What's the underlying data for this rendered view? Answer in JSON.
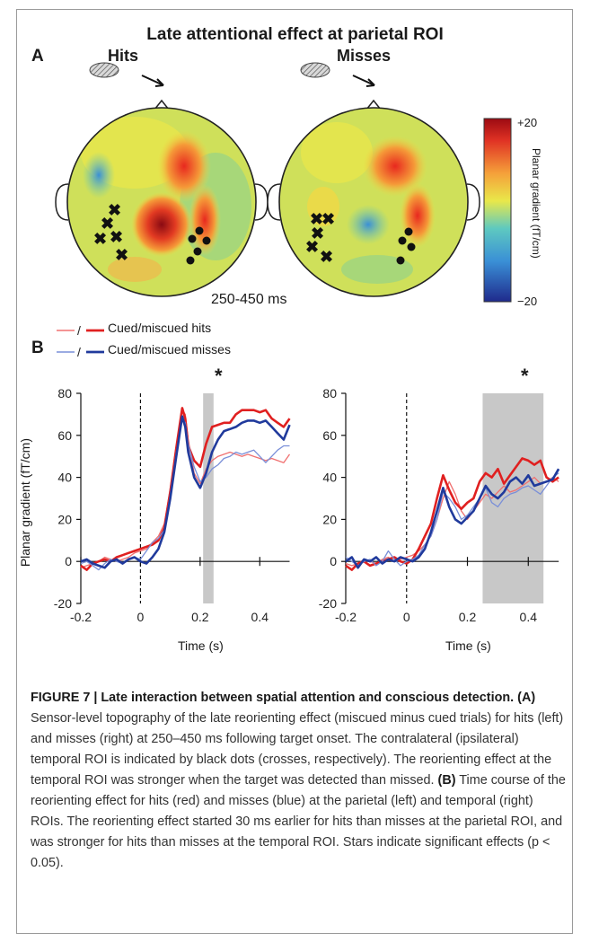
{
  "figure": {
    "title": "Late attentional effect at parietal ROI",
    "panel_a_label": "A",
    "panel_b_label": "B",
    "hits_label": "Hits",
    "misses_label": "Misses",
    "time_window": "250-450 ms",
    "colorbar": {
      "max": "+20",
      "min": "−20",
      "label": "Planar gradient (fT/cm)"
    },
    "legend": [
      {
        "label": "Cued/miscued hits",
        "separator": "/",
        "colors": [
          "#f07070",
          "#e02020"
        ]
      },
      {
        "label": "Cued/miscued misses",
        "separator": "/",
        "colors": [
          "#7a8fd8",
          "#203a9c"
        ]
      }
    ],
    "significance_marker": "*",
    "ylabel": "Planar gradient (fT/cm)",
    "xlabel": "Time (s)"
  },
  "caption": {
    "title": "FIGURE 7 | Late interaction between spatial attention and conscious detection.",
    "a_marker": "(A)",
    "a_text": " Sensor-level topography of the late reorienting effect (miscued minus cued trials) for hits (left) and misses (right) at 250–450 ms following target onset. The contralateral (ipsilateral) temporal ROI is indicated by black dots (crosses, respectively). The reorienting effect at the temporal ROI was stronger when the target was detected than missed. ",
    "b_marker": "(B)",
    "b_text": " Time course of the reorienting effect for hits (red) and misses (blue) at the parietal (left) and temporal (right) ROIs. The reorienting effect started 30 ms earlier for hits than misses at the parietal ROI, and was stronger for hits than misses at the temporal ROI. Stars indicate significant effects (p < 0.05)."
  },
  "chart_data": [
    {
      "type": "line",
      "title": "",
      "xlabel": "Time (s)",
      "ylabel": "Planar gradient (fT/cm)",
      "xlim": [
        -0.2,
        0.5
      ],
      "ylim": [
        -20,
        80
      ],
      "x_ticks": [
        "-0.2",
        "0",
        "0.2",
        "0.4"
      ],
      "y_ticks": [
        "-20",
        "0",
        "20",
        "40",
        "60",
        "80"
      ],
      "significant_window": [
        0.21,
        0.245
      ],
      "significance_marker_x": 0.225,
      "onset_line_x": 0,
      "x": [
        -0.2,
        -0.18,
        -0.16,
        -0.14,
        -0.12,
        -0.1,
        -0.08,
        -0.06,
        -0.04,
        -0.02,
        0.0,
        0.02,
        0.04,
        0.06,
        0.08,
        0.1,
        0.12,
        0.14,
        0.15,
        0.16,
        0.18,
        0.2,
        0.22,
        0.24,
        0.26,
        0.28,
        0.3,
        0.32,
        0.34,
        0.36,
        0.38,
        0.4,
        0.42,
        0.44,
        0.46,
        0.48,
        0.5
      ],
      "series": [
        {
          "name": "Cued/miscued hits",
          "color": "#f07070",
          "width": 1.3,
          "values": [
            -3,
            -2,
            -1,
            0,
            2,
            1,
            0,
            1,
            2,
            4,
            5,
            6,
            9,
            12,
            18,
            35,
            55,
            72,
            70,
            58,
            42,
            37,
            44,
            48,
            50,
            51,
            52,
            51,
            50,
            51,
            50,
            49,
            48,
            49,
            48,
            47,
            51
          ]
        },
        {
          "name": "Cued/miscued hits",
          "color": "#e02020",
          "width": 2.6,
          "values": [
            -2,
            -4,
            -1,
            0,
            1,
            0,
            2,
            3,
            4,
            5,
            6,
            7,
            8,
            10,
            16,
            33,
            54,
            73,
            68,
            55,
            48,
            45,
            56,
            64,
            65,
            66,
            66,
            70,
            72,
            72,
            72,
            71,
            72,
            68,
            66,
            64,
            68
          ]
        },
        {
          "name": "Cued/miscued misses",
          "color": "#7a8fd8",
          "width": 1.3,
          "values": [
            -1,
            0,
            -2,
            -4,
            -1,
            1,
            0,
            -1,
            1,
            2,
            1,
            5,
            9,
            11,
            15,
            32,
            52,
            68,
            66,
            56,
            45,
            38,
            40,
            44,
            46,
            49,
            50,
            52,
            51,
            52,
            53,
            50,
            47,
            50,
            53,
            55,
            55
          ]
        },
        {
          "name": "Cued/miscued misses",
          "color": "#203a9c",
          "width": 2.6,
          "values": [
            0,
            1,
            -1,
            -2,
            -3,
            0,
            1,
            -1,
            1,
            2,
            0,
            -1,
            2,
            6,
            14,
            30,
            50,
            69,
            64,
            52,
            40,
            35,
            42,
            52,
            58,
            62,
            63,
            64,
            66,
            67,
            67,
            66,
            67,
            64,
            61,
            58,
            65
          ]
        }
      ]
    },
    {
      "type": "line",
      "title": "",
      "xlabel": "Time (s)",
      "ylabel": "",
      "xlim": [
        -0.2,
        0.5
      ],
      "ylim": [
        -20,
        80
      ],
      "x_ticks": [
        "-0.2",
        "0",
        "0.2",
        "0.4"
      ],
      "y_ticks": [
        "-20",
        "0",
        "20",
        "40",
        "60",
        "80"
      ],
      "significant_window": [
        0.25,
        0.45
      ],
      "significance_marker_x": 0.35,
      "onset_line_x": 0,
      "x": [
        -0.2,
        -0.18,
        -0.16,
        -0.14,
        -0.12,
        -0.1,
        -0.08,
        -0.06,
        -0.04,
        -0.02,
        0.0,
        0.02,
        0.04,
        0.06,
        0.08,
        0.1,
        0.12,
        0.14,
        0.16,
        0.18,
        0.2,
        0.22,
        0.24,
        0.26,
        0.28,
        0.3,
        0.32,
        0.34,
        0.36,
        0.38,
        0.4,
        0.42,
        0.44,
        0.46,
        0.48,
        0.5
      ],
      "series": [
        {
          "name": "Cued/miscued hits",
          "color": "#f07070",
          "width": 1.3,
          "values": [
            -1,
            -2,
            -1,
            1,
            0,
            -1,
            1,
            2,
            0,
            1,
            2,
            3,
            5,
            8,
            12,
            20,
            30,
            38,
            32,
            24,
            20,
            24,
            28,
            32,
            30,
            33,
            36,
            33,
            34,
            36,
            38,
            40,
            37,
            38,
            40,
            38
          ]
        },
        {
          "name": "Cued/miscued hits",
          "color": "#e02020",
          "width": 2.6,
          "values": [
            -2,
            -4,
            -1,
            0,
            -2,
            -1,
            0,
            1,
            2,
            0,
            -1,
            1,
            6,
            12,
            18,
            30,
            41,
            34,
            28,
            25,
            28,
            30,
            38,
            42,
            40,
            44,
            37,
            41,
            45,
            49,
            48,
            46,
            48,
            40,
            38,
            40
          ]
        },
        {
          "name": "Cued/miscued misses",
          "color": "#7a8fd8",
          "width": 1.3,
          "values": [
            2,
            0,
            -2,
            0,
            1,
            -2,
            0,
            5,
            1,
            -2,
            0,
            1,
            3,
            8,
            12,
            20,
            33,
            30,
            26,
            20,
            22,
            26,
            30,
            35,
            28,
            26,
            30,
            32,
            33,
            35,
            36,
            34,
            32,
            36,
            40,
            42
          ]
        },
        {
          "name": "Cued/miscued misses",
          "color": "#203a9c",
          "width": 2.6,
          "values": [
            0,
            2,
            -3,
            1,
            0,
            2,
            -1,
            1,
            0,
            2,
            1,
            0,
            2,
            6,
            14,
            24,
            35,
            26,
            20,
            18,
            21,
            24,
            30,
            36,
            32,
            30,
            33,
            38,
            40,
            37,
            41,
            36,
            37,
            38,
            39,
            44
          ]
        }
      ]
    }
  ]
}
